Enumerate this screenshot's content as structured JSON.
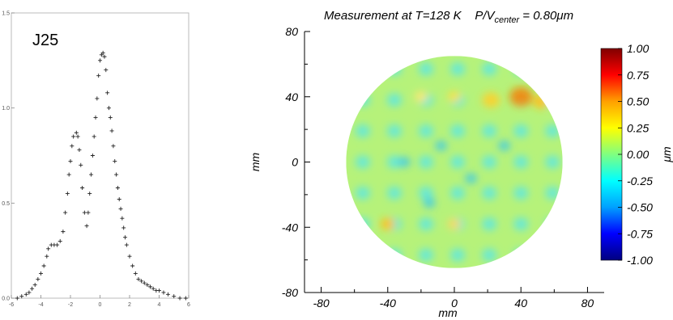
{
  "chart_data": [
    {
      "type": "scatter",
      "title": "J25",
      "xlim": [
        -6,
        6
      ],
      "ylim": [
        0,
        1.5
      ],
      "x_ticks": [
        "-6",
        "-4",
        "-2",
        "0",
        "2",
        "4",
        "6"
      ],
      "y_ticks": [
        "0.0",
        "0.5",
        "1.0",
        "1.5"
      ],
      "marker": "+",
      "points": [
        [
          -5.6,
          0.0
        ],
        [
          -5.3,
          0.01
        ],
        [
          -5.0,
          0.02
        ],
        [
          -4.8,
          0.03
        ],
        [
          -4.6,
          0.05
        ],
        [
          -4.4,
          0.07
        ],
        [
          -4.2,
          0.1
        ],
        [
          -4.0,
          0.13
        ],
        [
          -3.8,
          0.17
        ],
        [
          -3.6,
          0.22
        ],
        [
          -3.5,
          0.26
        ],
        [
          -3.3,
          0.28
        ],
        [
          -3.1,
          0.28
        ],
        [
          -2.9,
          0.28
        ],
        [
          -2.7,
          0.3
        ],
        [
          -2.5,
          0.35
        ],
        [
          -2.35,
          0.45
        ],
        [
          -2.2,
          0.55
        ],
        [
          -2.1,
          0.65
        ],
        [
          -2.0,
          0.72
        ],
        [
          -1.9,
          0.8
        ],
        [
          -1.8,
          0.85
        ],
        [
          -1.6,
          0.87
        ],
        [
          -1.5,
          0.85
        ],
        [
          -1.4,
          0.78
        ],
        [
          -1.3,
          0.7
        ],
        [
          -1.2,
          0.58
        ],
        [
          -1.05,
          0.45
        ],
        [
          -0.9,
          0.38
        ],
        [
          -0.8,
          0.45
        ],
        [
          -0.7,
          0.55
        ],
        [
          -0.6,
          0.65
        ],
        [
          -0.5,
          0.75
        ],
        [
          -0.4,
          0.85
        ],
        [
          -0.3,
          0.95
        ],
        [
          -0.2,
          1.05
        ],
        [
          -0.1,
          1.17
        ],
        [
          0.0,
          1.25
        ],
        [
          0.1,
          1.28
        ],
        [
          0.2,
          1.29
        ],
        [
          0.3,
          1.27
        ],
        [
          0.4,
          1.2
        ],
        [
          0.5,
          1.08
        ],
        [
          0.6,
          1.0
        ],
        [
          0.7,
          0.95
        ],
        [
          0.8,
          0.88
        ],
        [
          0.9,
          0.8
        ],
        [
          1.0,
          0.72
        ],
        [
          1.1,
          0.65
        ],
        [
          1.2,
          0.58
        ],
        [
          1.3,
          0.52
        ],
        [
          1.4,
          0.47
        ],
        [
          1.5,
          0.42
        ],
        [
          1.6,
          0.37
        ],
        [
          1.7,
          0.32
        ],
        [
          1.8,
          0.28
        ],
        [
          2.0,
          0.22
        ],
        [
          2.2,
          0.17
        ],
        [
          2.4,
          0.13
        ],
        [
          2.6,
          0.1
        ],
        [
          2.8,
          0.09
        ],
        [
          3.0,
          0.08
        ],
        [
          3.2,
          0.07
        ],
        [
          3.4,
          0.06
        ],
        [
          3.6,
          0.05
        ],
        [
          3.8,
          0.04
        ],
        [
          4.0,
          0.04
        ],
        [
          4.3,
          0.03
        ],
        [
          4.6,
          0.02
        ],
        [
          5.0,
          0.01
        ],
        [
          5.4,
          0.0
        ],
        [
          5.8,
          0.0
        ]
      ]
    },
    {
      "type": "heatmap",
      "title": "Measurement at T=128 K    P/V",
      "title_subscript": "center",
      "title_suffix": " = 0.80μm",
      "xlabel": "mm",
      "ylabel": "mm",
      "xlim": [
        -90,
        90
      ],
      "ylim": [
        -80,
        80
      ],
      "x_ticks": [
        "-80",
        "-40",
        "0",
        "40",
        "80"
      ],
      "y_ticks": [
        "80",
        "40",
        "0",
        "-40",
        "-80"
      ],
      "disc_radius_mm": 65,
      "colorbar": {
        "label": "μm",
        "range": [
          -1.0,
          1.0
        ],
        "ticks": [
          "1.00",
          "0.75",
          "0.50",
          "0.25",
          "0.00",
          "-0.25",
          "-0.50",
          "-0.75",
          "-1.00"
        ],
        "colors": [
          "#000080",
          "#0000ff",
          "#00a0ff",
          "#00ffff",
          "#80ff80",
          "#ffff00",
          "#ffa000",
          "#ff0000",
          "#800000"
        ]
      }
    }
  ]
}
